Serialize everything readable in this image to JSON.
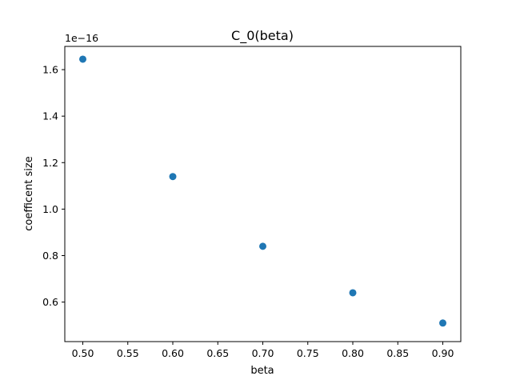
{
  "chart_data": {
    "type": "scatter",
    "title": "C_0(beta)",
    "xlabel": "beta",
    "ylabel": "coefficent size",
    "y_offset_label": "1e−16",
    "xlim": [
      0.48,
      0.92
    ],
    "ylim": [
      0.43,
      1.7
    ],
    "x_ticks": [
      0.5,
      0.55,
      0.6,
      0.65,
      0.7,
      0.75,
      0.8,
      0.85,
      0.9
    ],
    "x_tick_labels": [
      "0.50",
      "0.55",
      "0.60",
      "0.65",
      "0.70",
      "0.75",
      "0.80",
      "0.85",
      "0.90"
    ],
    "y_ticks": [
      0.6,
      0.8,
      1.0,
      1.2,
      1.4,
      1.6
    ],
    "y_tick_labels": [
      "0.6",
      "0.8",
      "1.0",
      "1.2",
      "1.4",
      "1.6"
    ],
    "grid": false,
    "legend": "none",
    "marker_color": "#1f77b4",
    "series": [
      {
        "x": [
          0.5,
          0.6,
          0.7,
          0.8,
          0.9
        ],
        "y": [
          1.645,
          1.14,
          0.84,
          0.64,
          0.51
        ]
      }
    ]
  }
}
